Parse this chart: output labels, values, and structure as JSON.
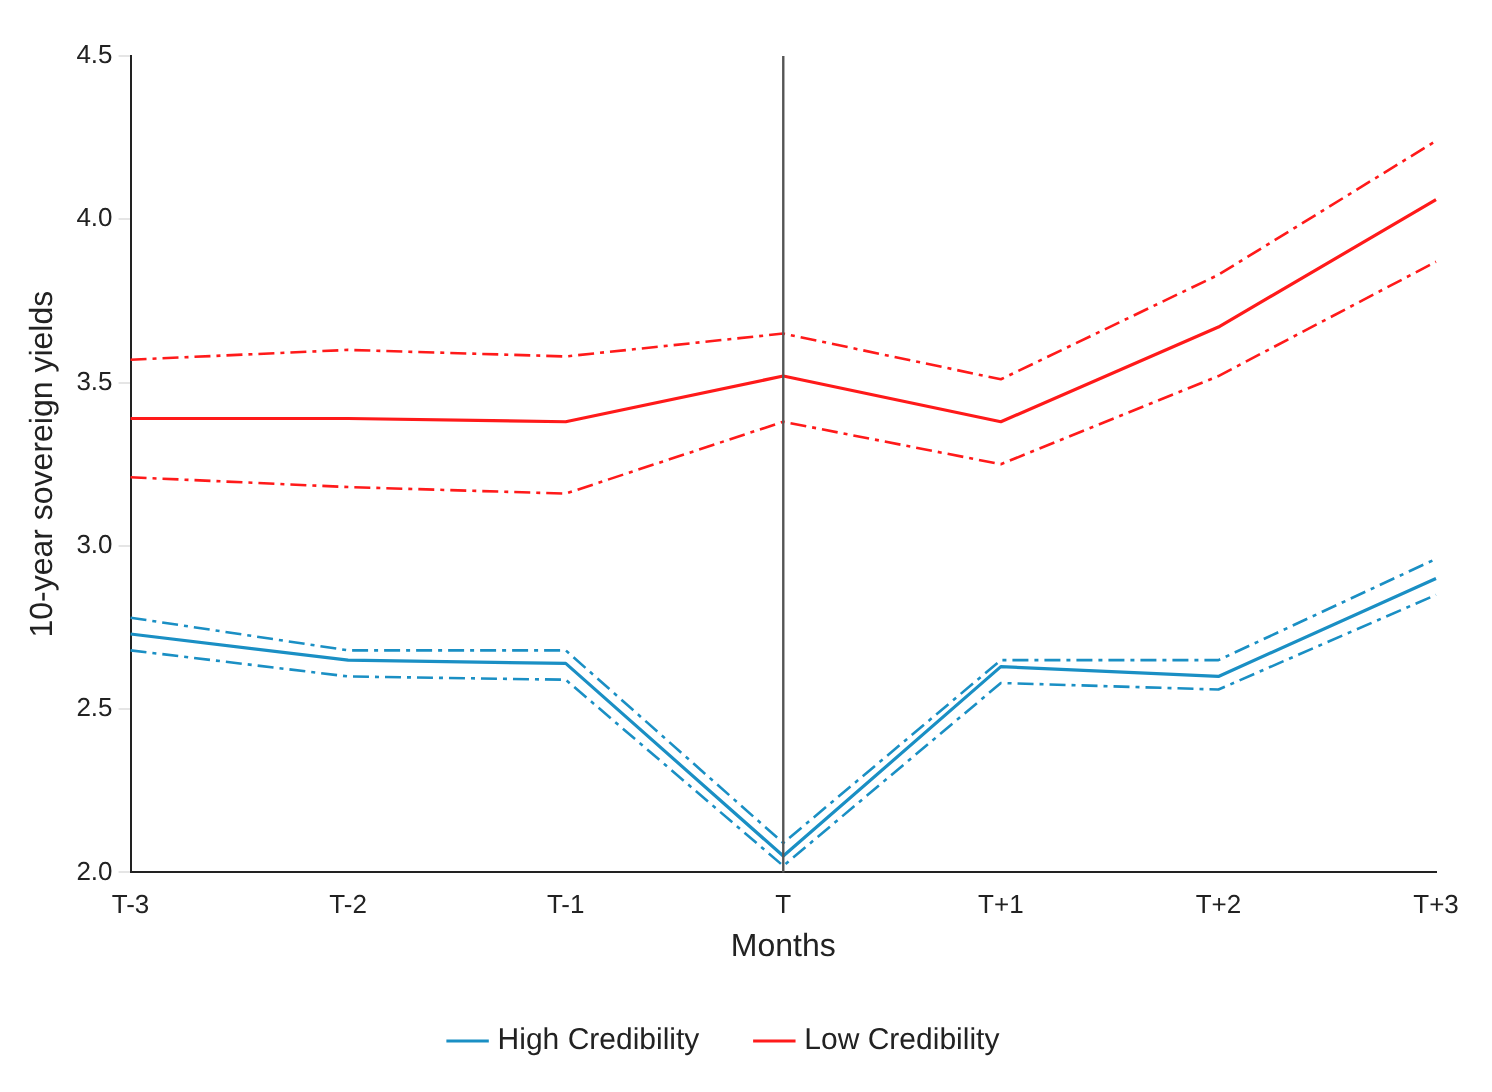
{
  "chart_data": {
    "type": "line",
    "xlabel": "Months",
    "ylabel": "10-year sovereign yields",
    "categories": [
      "T-3",
      "T-2",
      "T-1",
      "T",
      "T+1",
      "T+2",
      "T+3"
    ],
    "series": [
      {
        "name": "High Credibility",
        "color": "#1a8fc4",
        "values": [
          2.73,
          2.65,
          2.64,
          2.05,
          2.63,
          2.6,
          2.9
        ]
      },
      {
        "color": "#1a8fc4",
        "line_style": "dashed",
        "values": [
          2.68,
          2.6,
          2.59,
          2.02,
          2.58,
          2.56,
          2.85
        ]
      },
      {
        "color": "#1a8fc4",
        "line_style": "dashed",
        "values": [
          2.78,
          2.68,
          2.68,
          2.09,
          2.65,
          2.65,
          2.96
        ]
      },
      {
        "name": "Low Credibility",
        "color": "#ff1a1a",
        "values": [
          3.39,
          3.39,
          3.38,
          3.52,
          3.38,
          3.67,
          4.06
        ]
      },
      {
        "color": "#ff1a1a",
        "line_style": "dashed",
        "values": [
          3.21,
          3.18,
          3.16,
          3.38,
          3.25,
          3.52,
          3.87
        ]
      },
      {
        "color": "#ff1a1a",
        "line_style": "dashed",
        "values": [
          3.57,
          3.6,
          3.58,
          3.65,
          3.51,
          3.83,
          4.24
        ]
      }
    ],
    "ylim": [
      2.0,
      4.5
    ],
    "yticks": [
      {
        "value": 2,
        "label": "2.0"
      },
      2.5,
      {
        "value": 3,
        "label": "3.0"
      },
      3.5,
      {
        "value": 4,
        "label": "4.0"
      },
      4.5
    ],
    "ref_lines": [
      {
        "axis": "x",
        "value": "T",
        "color": "#555555"
      }
    ],
    "grid": false,
    "legend": "bottom",
    "line_style": "solid",
    "marker": "none"
  }
}
